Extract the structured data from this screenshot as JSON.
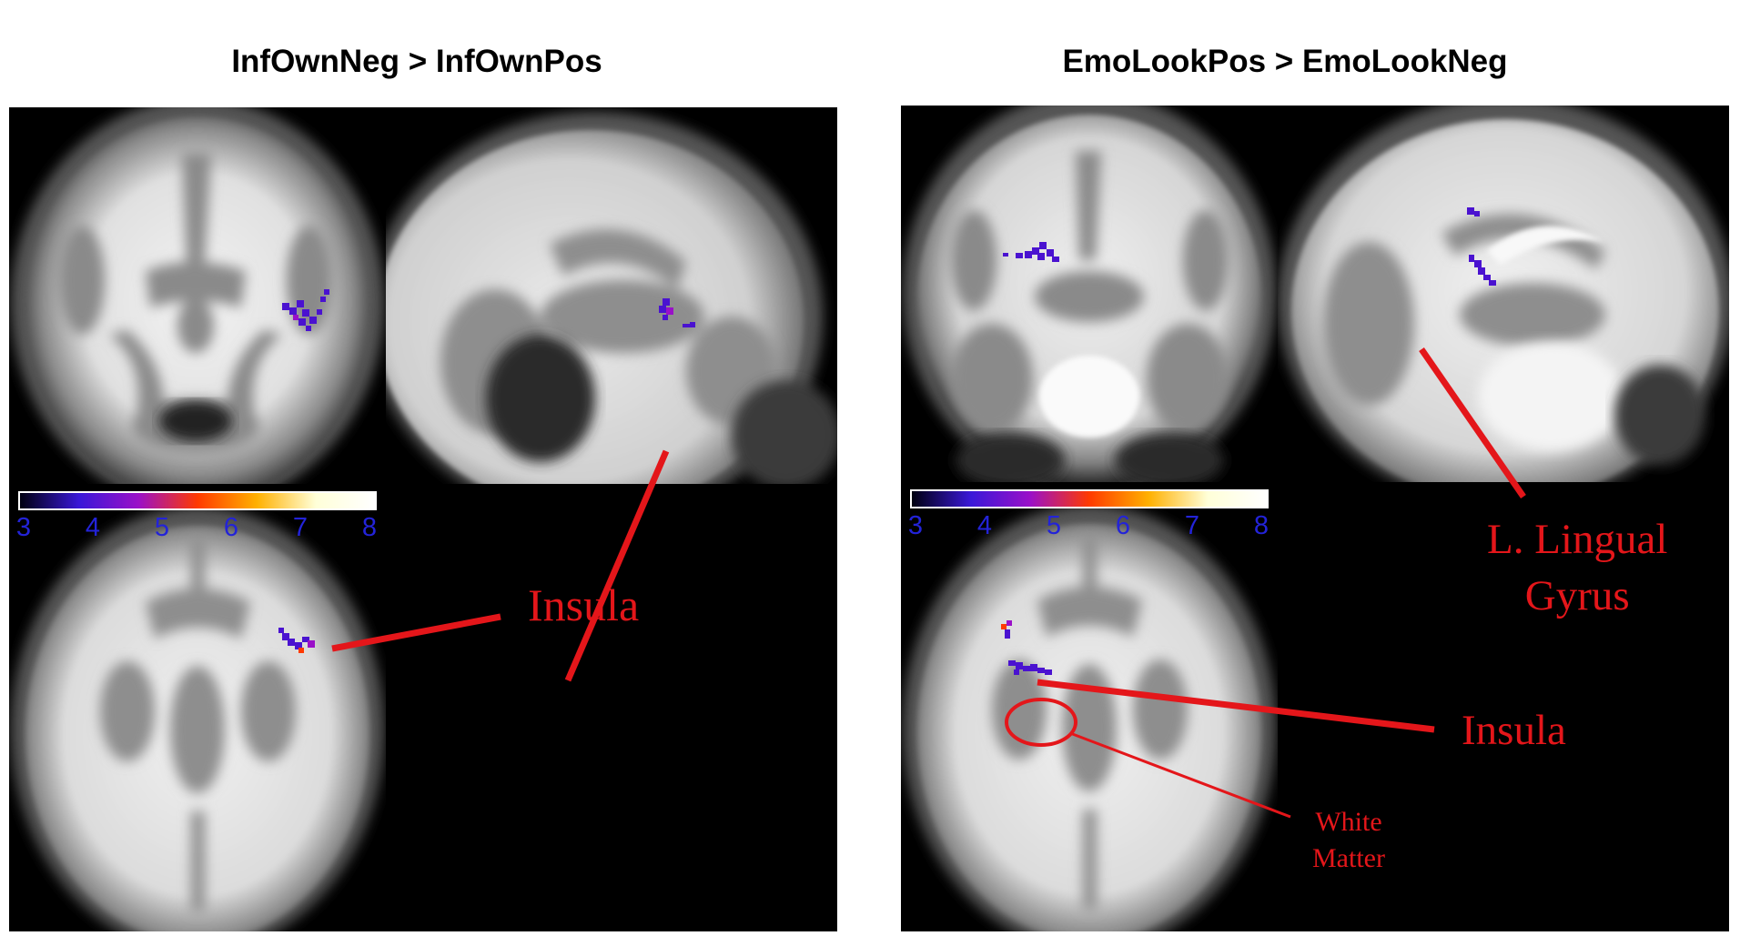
{
  "panels": [
    {
      "title": "InfOwnNeg > InfOwnPos",
      "colorbar": {
        "ticks": [
          "3",
          "4",
          "5",
          "6",
          "7",
          "8"
        ],
        "stops": [
          "#000010",
          "#3a18d8",
          "#9a10c8",
          "#ff3a00",
          "#ffb000",
          "#ffffd8",
          "#ffffff"
        ]
      },
      "annotations": {
        "insula": "Insula"
      }
    },
    {
      "title": "EmoLookPos > EmoLookNeg",
      "colorbar": {
        "ticks": [
          "3",
          "4",
          "5",
          "6",
          "7",
          "8"
        ],
        "stops": [
          "#000010",
          "#3a18d8",
          "#9a10c8",
          "#ff3a00",
          "#ffb000",
          "#ffffd8",
          "#ffffff"
        ]
      },
      "annotations": {
        "lingual_line1": "L. Lingual",
        "lingual_line2": "Gyrus",
        "insula": "Insula",
        "white_matter_line1": "White",
        "white_matter_line2": "Matter"
      }
    }
  ],
  "colors": {
    "annotation": "#e4161a",
    "tick_label": "#2323d8",
    "activation": "#4a12d0"
  }
}
